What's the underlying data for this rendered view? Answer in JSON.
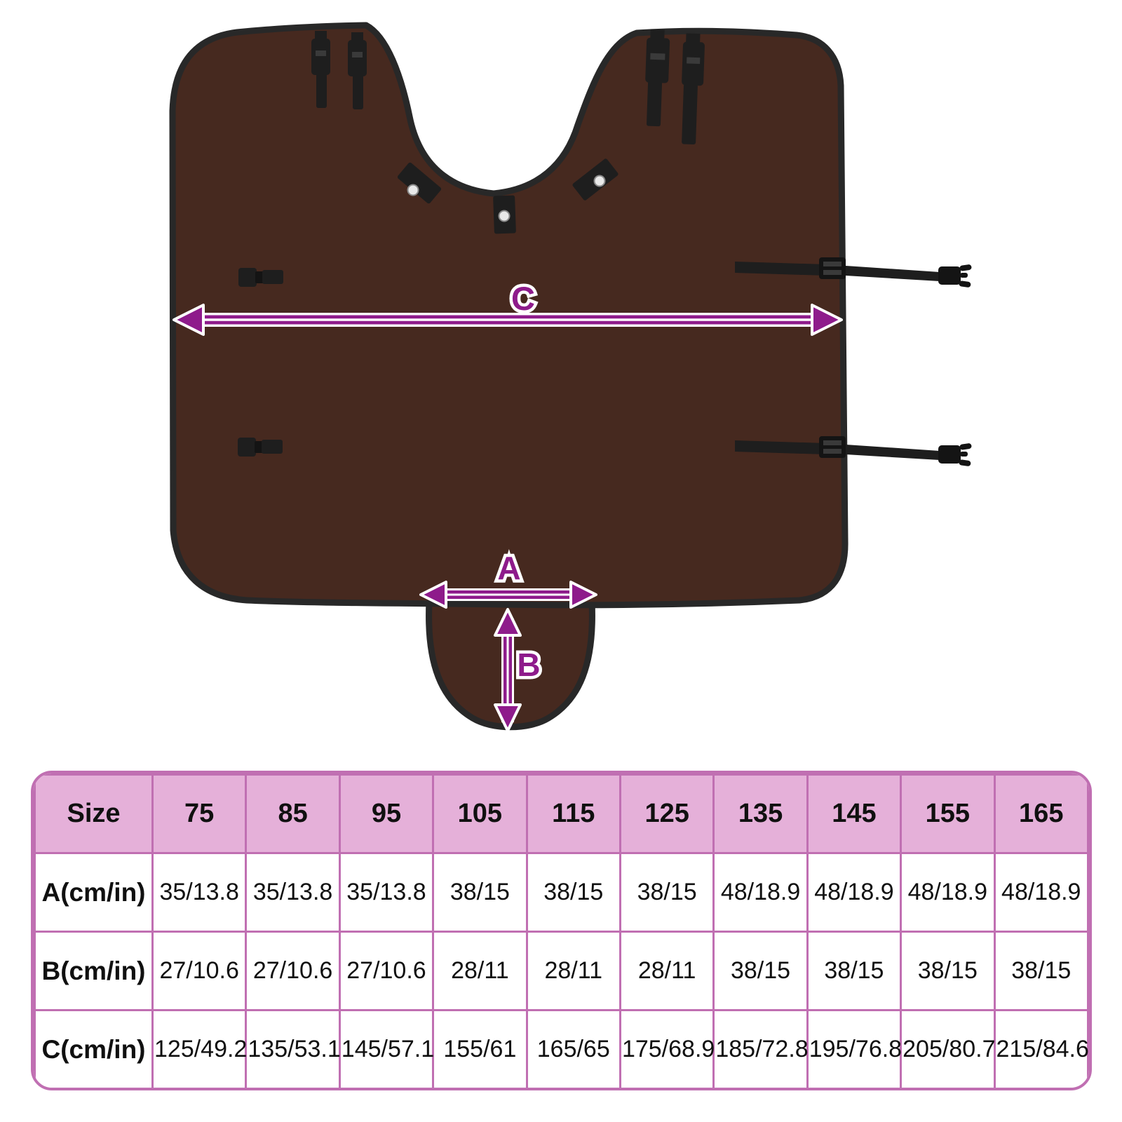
{
  "page": {
    "background": "#ffffff"
  },
  "diagram": {
    "type": "product-measurement-diagram",
    "subject": "horse rug with neck cutout, tail flap, snap tabs and buckle straps",
    "colors": {
      "rug": "#46291f",
      "trim": "#282828",
      "strap": "#1e1e1e",
      "arrow": "#8e1b8b",
      "arrow_outline": "#ffffff"
    },
    "measure_labels": {
      "a": "A",
      "b": "B",
      "c": "C"
    }
  },
  "size_table": {
    "border_color": "#c06fb2",
    "header_fill": "#e5b0d9",
    "columns": [
      "Size",
      "75",
      "85",
      "95",
      "105",
      "115",
      "125",
      "135",
      "145",
      "155",
      "165"
    ],
    "rows": [
      {
        "label": "A(cm/in)",
        "values": [
          "35/13.8",
          "35/13.8",
          "35/13.8",
          "38/15",
          "38/15",
          "38/15",
          "48/18.9",
          "48/18.9",
          "48/18.9",
          "48/18.9"
        ]
      },
      {
        "label": "B(cm/in)",
        "values": [
          "27/10.6",
          "27/10.6",
          "27/10.6",
          "28/11",
          "28/11",
          "28/11",
          "38/15",
          "38/15",
          "38/15",
          "38/15"
        ]
      },
      {
        "label": "C(cm/in)",
        "values": [
          "125/49.2",
          "135/53.1",
          "145/57.1",
          "155/61",
          "165/65",
          "175/68.9",
          "185/72.8",
          "195/76.8",
          "205/80.7",
          "215/84.6"
        ]
      }
    ]
  }
}
